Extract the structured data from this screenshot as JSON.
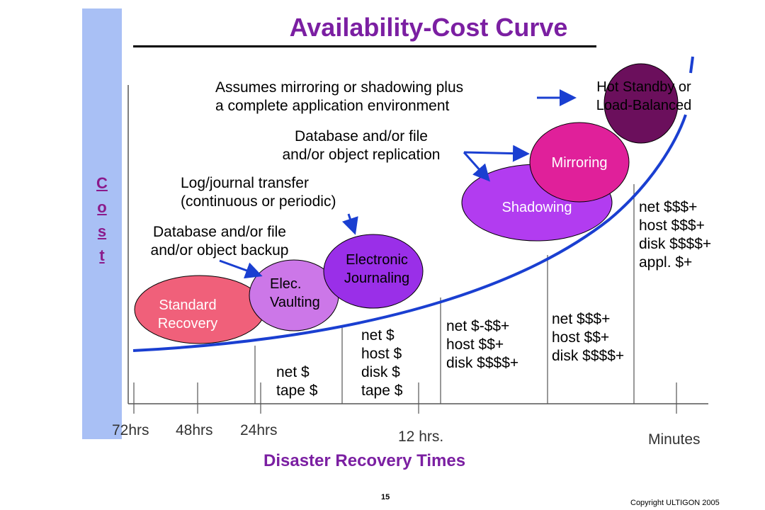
{
  "title": "Availability-Cost Curve",
  "y_axis_letters": [
    "C",
    "o",
    "s",
    "t"
  ],
  "x_axis": {
    "title": "Disaster Recovery Times",
    "ticks": [
      "72hrs",
      "48hrs",
      "24hrs",
      "12 hrs.",
      "Minutes"
    ]
  },
  "bubbles": {
    "standard_recovery": [
      "Standard",
      "Recovery"
    ],
    "elec_vaulting": [
      "Elec.",
      "Vaulting"
    ],
    "electronic_journaling": [
      "Electronic",
      "Journaling"
    ],
    "shadowing": "Shadowing",
    "mirroring": "Mirroring",
    "hot_standby": [
      "Hot Standby or",
      "Load-Balanced"
    ]
  },
  "annotations": {
    "backup": [
      "Database and/or file",
      "and/or object backup"
    ],
    "log_transfer": [
      "Log/journal transfer",
      "(continuous or periodic)"
    ],
    "replication": [
      "Database and/or file",
      "and/or object replication"
    ],
    "mirroring_env": [
      "Assumes mirroring or shadowing plus",
      "a complete application environment"
    ]
  },
  "cost_columns": {
    "col1": [
      "net $",
      "tape $"
    ],
    "col2": [
      "net $",
      "host $",
      "disk $",
      "tape $"
    ],
    "col3": [
      "net  $-$$+",
      "host $$+",
      "disk $$$$+"
    ],
    "col4": [
      "net $$$+",
      "host $$+",
      "disk $$$$+"
    ],
    "col5": [
      "net $$$+",
      "host $$$+",
      "disk $$$$+",
      "appl. $+"
    ]
  },
  "footer": {
    "page_number": "15",
    "copyright": "Copyright ULTIGON 2005"
  },
  "colors": {
    "title": "#7b1fa2",
    "curve": "#1a3fd1",
    "cost_bar": "#a9c0f5",
    "standard_recovery": "#f0607a",
    "elec_vaulting": "#cc77e8",
    "electronic_journaling": "#9a2fe8",
    "shadowing": "#b23cf0",
    "mirroring": "#e0209a",
    "hot_standby": "#6b0f5c"
  }
}
